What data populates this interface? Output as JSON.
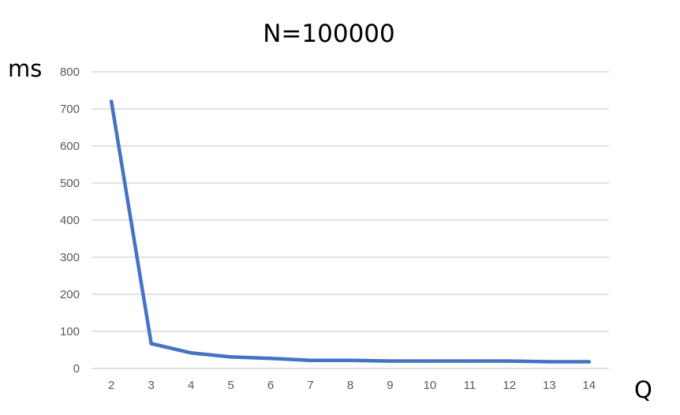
{
  "chart_data": {
    "type": "line",
    "title": "N=100000",
    "ylabel": "ms",
    "xlabel": "Q",
    "categories": [
      "2",
      "3",
      "4",
      "5",
      "6",
      "7",
      "8",
      "9",
      "10",
      "11",
      "12",
      "13",
      "14"
    ],
    "series": [
      {
        "values": [
          720,
          67,
          42,
          31,
          27,
          22,
          22,
          20,
          20,
          20,
          20,
          18,
          18
        ]
      }
    ],
    "ylim": [
      0,
      800
    ],
    "yticks": [
      0,
      100,
      200,
      300,
      400,
      500,
      600,
      700,
      800
    ],
    "grid": true,
    "legend": "none",
    "colors": {
      "series": "#4472c4",
      "grid": "#d9d9d9",
      "tick_text": "#595959"
    }
  }
}
